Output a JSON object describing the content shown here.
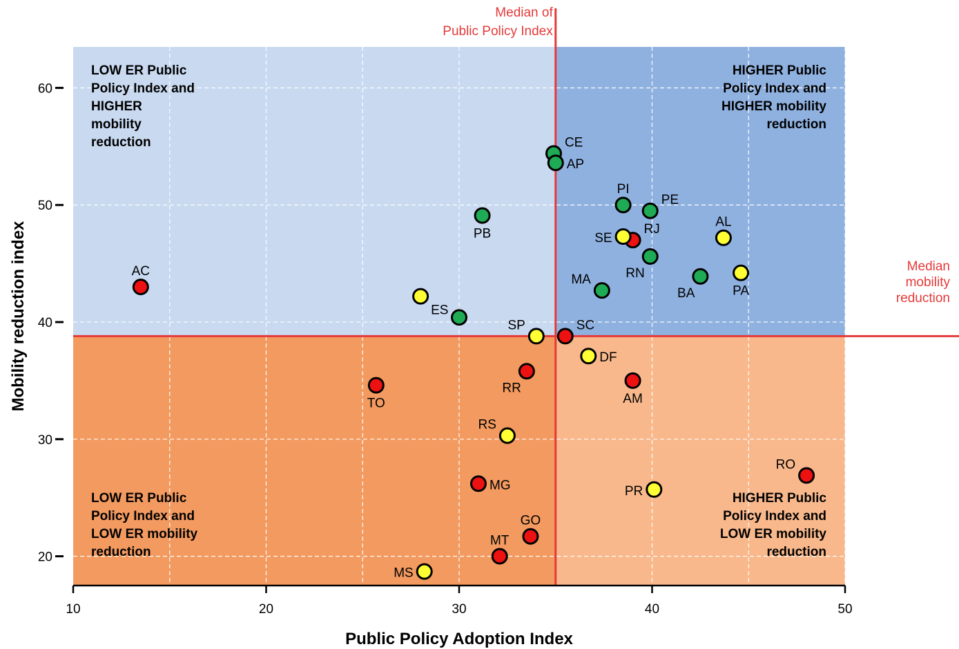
{
  "chart_data": {
    "type": "scatter",
    "xlabel": "Public Policy Adoption Index",
    "ylabel": "Mobility reduction index",
    "xlim": [
      10,
      50
    ],
    "ylim": [
      17.5,
      63.5
    ],
    "x_ticks": [
      10,
      20,
      30,
      40,
      50
    ],
    "y_ticks": [
      20,
      30,
      40,
      50,
      60
    ],
    "y_tick_labels": [
      "20",
      "30",
      "40",
      "50",
      "60"
    ],
    "grid": true,
    "median_x": 35,
    "median_y": 38.8,
    "median_x_label": [
      "Median of",
      "Public Policy Index"
    ],
    "median_y_label": [
      "Median",
      "mobility",
      "reduction"
    ],
    "quadrants": {
      "top_left": [
        "LOW ER Public",
        "Policy Index and",
        "HIGHER",
        "mobility",
        "reduction"
      ],
      "top_right": [
        "HIGHER Public",
        "Policy Index and",
        "HIGHER mobility",
        "reduction"
      ],
      "bottom_left": [
        "LOW ER Public",
        "Policy Index and",
        "LOW ER mobility",
        "reduction"
      ],
      "bottom_right": [
        "HIGHER Public",
        "Policy Index and",
        "LOW ER mobility",
        "reduction"
      ]
    },
    "colors": {
      "green": "#1faa55",
      "yellow": "#ffff33",
      "red": "#ee1111",
      "median_line": "#e53939",
      "quad_top_left": "#c8d9f0",
      "quad_top_right": "#8fb1e0",
      "quad_bottom_left": "#f29a60",
      "quad_bottom_right": "#f8b88c"
    },
    "points": [
      {
        "label": "AC",
        "x": 13.5,
        "y": 43.0,
        "color": "red",
        "label_pos": "above"
      },
      {
        "label": "ES",
        "x": 28.0,
        "y": 42.2,
        "color": "yellow",
        "label_pos": "below-right"
      },
      {
        "label": "",
        "x": 30.0,
        "y": 40.4,
        "color": "green",
        "label_pos": "none"
      },
      {
        "label": "PB",
        "x": 31.2,
        "y": 49.1,
        "color": "green",
        "label_pos": "below"
      },
      {
        "label": "CE",
        "x": 34.9,
        "y": 54.4,
        "color": "green",
        "label_pos": "above-right"
      },
      {
        "label": "AP",
        "x": 35.0,
        "y": 53.6,
        "color": "green",
        "label_pos": "right"
      },
      {
        "label": "PI",
        "x": 38.5,
        "y": 50.0,
        "color": "green",
        "label_pos": "above"
      },
      {
        "label": "PE",
        "x": 39.9,
        "y": 49.5,
        "color": "green",
        "label_pos": "above-right"
      },
      {
        "label": "RJ",
        "x": 39.0,
        "y": 47.0,
        "color": "red",
        "label_pos": "above-right"
      },
      {
        "label": "SE",
        "x": 38.5,
        "y": 47.3,
        "color": "yellow",
        "label_pos": "left"
      },
      {
        "label": "RN",
        "x": 39.9,
        "y": 45.6,
        "color": "green",
        "label_pos": "below-left"
      },
      {
        "label": "MA",
        "x": 37.4,
        "y": 42.7,
        "color": "green",
        "label_pos": "above-left"
      },
      {
        "label": "BA",
        "x": 42.5,
        "y": 43.9,
        "color": "green",
        "label_pos": "below-left"
      },
      {
        "label": "AL",
        "x": 43.7,
        "y": 47.2,
        "color": "yellow",
        "label_pos": "above"
      },
      {
        "label": "PA",
        "x": 44.6,
        "y": 44.2,
        "color": "yellow",
        "label_pos": "below"
      },
      {
        "label": "SP",
        "x": 34.0,
        "y": 38.8,
        "color": "yellow",
        "label_pos": "above-left"
      },
      {
        "label": "SC",
        "x": 35.5,
        "y": 38.8,
        "color": "red",
        "label_pos": "above-right"
      },
      {
        "label": "DF",
        "x": 36.7,
        "y": 37.1,
        "color": "yellow",
        "label_pos": "right"
      },
      {
        "label": "RR",
        "x": 33.5,
        "y": 35.8,
        "color": "red",
        "label_pos": "below-left"
      },
      {
        "label": "AM",
        "x": 39.0,
        "y": 35.0,
        "color": "red",
        "label_pos": "below"
      },
      {
        "label": "TO",
        "x": 25.7,
        "y": 34.6,
        "color": "red",
        "label_pos": "below"
      },
      {
        "label": "RS",
        "x": 32.5,
        "y": 30.3,
        "color": "yellow",
        "label_pos": "above-left"
      },
      {
        "label": "MG",
        "x": 31.0,
        "y": 26.2,
        "color": "red",
        "label_pos": "right"
      },
      {
        "label": "PR",
        "x": 40.1,
        "y": 25.7,
        "color": "yellow",
        "label_pos": "left"
      },
      {
        "label": "RO",
        "x": 48.0,
        "y": 26.9,
        "color": "red",
        "label_pos": "above-left"
      },
      {
        "label": "GO",
        "x": 33.7,
        "y": 21.7,
        "color": "red",
        "label_pos": "above"
      },
      {
        "label": "MT",
        "x": 32.1,
        "y": 20.0,
        "color": "red",
        "label_pos": "above"
      },
      {
        "label": "MS",
        "x": 28.2,
        "y": 18.7,
        "color": "yellow",
        "label_pos": "left"
      }
    ]
  }
}
